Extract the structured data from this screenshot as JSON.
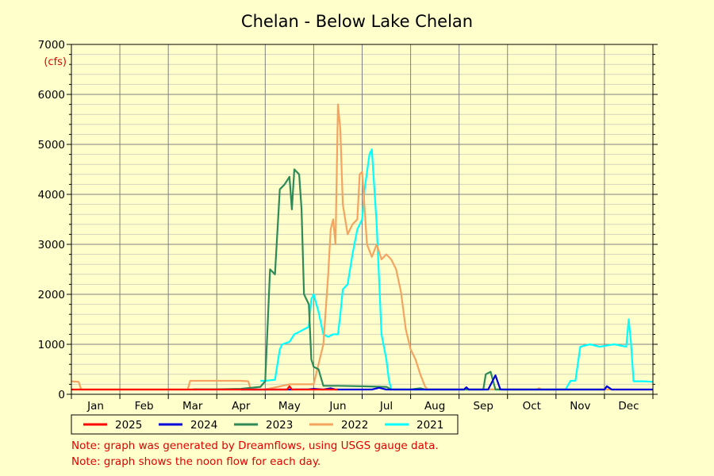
{
  "chart_data": {
    "type": "line",
    "title": "Chelan - Below Lake Chelan",
    "ylabel": "(cfs)",
    "xlabel": "",
    "xlim": [
      0,
      12
    ],
    "ylim": [
      0,
      7000
    ],
    "yticks": [
      0,
      1000,
      2000,
      3000,
      4000,
      5000,
      6000,
      7000
    ],
    "months": [
      "Jan",
      "Feb",
      "Mar",
      "Apr",
      "May",
      "Jun",
      "Jul",
      "Aug",
      "Sep",
      "Oct",
      "Nov",
      "Dec"
    ],
    "grid": true,
    "legend_position": "bottom-left",
    "notes": [
      "Note: graph was generated by Dreamflows, using USGS gauge data.",
      "Note: graph shows the noon flow for each day."
    ],
    "series": [
      {
        "name": "2025",
        "color": "#ff0000",
        "points": [
          [
            0,
            60
          ],
          [
            1,
            60
          ],
          [
            2,
            60
          ],
          [
            3,
            60
          ],
          [
            3.9,
            65
          ],
          [
            4.45,
            70
          ],
          [
            4.5,
            160
          ],
          [
            4.55,
            70
          ],
          [
            4.8,
            75
          ],
          [
            5.3,
            80
          ],
          [
            5.5,
            70
          ]
        ]
      },
      {
        "name": "2024",
        "color": "#0000dd",
        "points": [
          [
            3.5,
            70
          ],
          [
            3.9,
            75
          ],
          [
            4.3,
            80
          ],
          [
            4.5,
            90
          ],
          [
            4.9,
            100
          ],
          [
            5,
            110
          ],
          [
            5.2,
            80
          ],
          [
            5.35,
            120
          ],
          [
            5.45,
            80
          ],
          [
            6.0,
            60
          ],
          [
            6.2,
            90
          ],
          [
            6.35,
            130
          ],
          [
            6.5,
            80
          ],
          [
            6.65,
            50
          ],
          [
            6.9,
            60
          ],
          [
            7.0,
            90
          ],
          [
            7.1,
            50
          ],
          [
            8.1,
            50
          ],
          [
            8.15,
            140
          ],
          [
            8.2,
            60
          ],
          [
            8.6,
            60
          ],
          [
            8.75,
            380
          ],
          [
            8.85,
            100
          ],
          [
            8.9,
            50
          ],
          [
            10,
            60
          ],
          [
            11,
            60
          ],
          [
            11.05,
            160
          ],
          [
            11.15,
            60
          ],
          [
            12,
            60
          ]
        ]
      },
      {
        "name": "2023",
        "color": "#2e8b57",
        "points": [
          [
            2.5,
            100
          ],
          [
            3,
            100
          ],
          [
            3.5,
            110
          ],
          [
            3.9,
            150
          ],
          [
            4.0,
            260
          ],
          [
            4.1,
            2500
          ],
          [
            4.2,
            2400
          ],
          [
            4.3,
            4100
          ],
          [
            4.4,
            4200
          ],
          [
            4.5,
            4350
          ],
          [
            4.55,
            3700
          ],
          [
            4.6,
            4500
          ],
          [
            4.7,
            4400
          ],
          [
            4.75,
            3700
          ],
          [
            4.8,
            2000
          ],
          [
            4.9,
            1800
          ],
          [
            4.95,
            700
          ],
          [
            5.0,
            550
          ],
          [
            5.1,
            500
          ],
          [
            5.2,
            170
          ],
          [
            5.5,
            170
          ],
          [
            6.0,
            160
          ],
          [
            6.5,
            150
          ],
          [
            6.6,
            80
          ],
          [
            7.0,
            90
          ],
          [
            7.2,
            120
          ],
          [
            7.3,
            60
          ],
          [
            8.5,
            60
          ],
          [
            8.55,
            400
          ],
          [
            8.65,
            450
          ],
          [
            8.75,
            80
          ],
          [
            10,
            60
          ],
          [
            11,
            60
          ],
          [
            11.05,
            160
          ],
          [
            11.15,
            60
          ]
        ]
      },
      {
        "name": "2022",
        "color": "#f4a460",
        "points": [
          [
            0,
            260
          ],
          [
            0.15,
            250
          ],
          [
            0.2,
            60
          ],
          [
            2.4,
            60
          ],
          [
            2.45,
            270
          ],
          [
            3.0,
            270
          ],
          [
            3.5,
            270
          ],
          [
            3.65,
            260
          ],
          [
            3.7,
            90
          ],
          [
            4.0,
            90
          ],
          [
            4.5,
            200
          ],
          [
            5.0,
            200
          ],
          [
            5.2,
            1000
          ],
          [
            5.3,
            2400
          ],
          [
            5.35,
            3300
          ],
          [
            5.4,
            3500
          ],
          [
            5.45,
            3000
          ],
          [
            5.5,
            5800
          ],
          [
            5.55,
            5300
          ],
          [
            5.6,
            3800
          ],
          [
            5.7,
            3200
          ],
          [
            5.8,
            3400
          ],
          [
            5.9,
            3500
          ],
          [
            5.95,
            4400
          ],
          [
            6.0,
            4450
          ],
          [
            6.1,
            3000
          ],
          [
            6.2,
            2750
          ],
          [
            6.3,
            3000
          ],
          [
            6.4,
            2700
          ],
          [
            6.5,
            2800
          ],
          [
            6.6,
            2700
          ],
          [
            6.7,
            2500
          ],
          [
            6.8,
            2050
          ],
          [
            6.9,
            1300
          ],
          [
            7.0,
            900
          ],
          [
            7.1,
            700
          ],
          [
            7.2,
            400
          ],
          [
            7.3,
            150
          ],
          [
            7.35,
            100
          ],
          [
            9.6,
            60
          ],
          [
            9.65,
            120
          ],
          [
            9.7,
            60
          ],
          [
            12,
            60
          ]
        ]
      },
      {
        "name": "2021",
        "color": "#00ffff",
        "points": [
          [
            3.9,
            270
          ],
          [
            4.0,
            270
          ],
          [
            4.2,
            290
          ],
          [
            4.3,
            900
          ],
          [
            4.35,
            1000
          ],
          [
            4.5,
            1050
          ],
          [
            4.6,
            1200
          ],
          [
            4.7,
            1250
          ],
          [
            4.8,
            1300
          ],
          [
            4.9,
            1350
          ],
          [
            4.95,
            1900
          ],
          [
            5.0,
            2000
          ],
          [
            5.1,
            1650
          ],
          [
            5.2,
            1200
          ],
          [
            5.3,
            1150
          ],
          [
            5.4,
            1200
          ],
          [
            5.5,
            1200
          ],
          [
            5.55,
            1600
          ],
          [
            5.6,
            2100
          ],
          [
            5.7,
            2200
          ],
          [
            5.8,
            2800
          ],
          [
            5.9,
            3300
          ],
          [
            6.0,
            3500
          ],
          [
            6.05,
            4100
          ],
          [
            6.15,
            4800
          ],
          [
            6.2,
            4900
          ],
          [
            6.3,
            3400
          ],
          [
            6.4,
            1200
          ],
          [
            6.5,
            700
          ],
          [
            6.55,
            300
          ],
          [
            6.6,
            100
          ],
          [
            7.0,
            90
          ],
          [
            8.0,
            70
          ],
          [
            9.0,
            70
          ],
          [
            10.0,
            90
          ],
          [
            10.2,
            100
          ],
          [
            10.3,
            270
          ],
          [
            10.4,
            270
          ],
          [
            10.5,
            950
          ],
          [
            10.7,
            1000
          ],
          [
            10.9,
            950
          ],
          [
            11.2,
            1000
          ],
          [
            11.45,
            950
          ],
          [
            11.5,
            1500
          ],
          [
            11.55,
            1000
          ],
          [
            11.6,
            260
          ],
          [
            11.8,
            260
          ],
          [
            12.0,
            250
          ]
        ]
      }
    ]
  }
}
